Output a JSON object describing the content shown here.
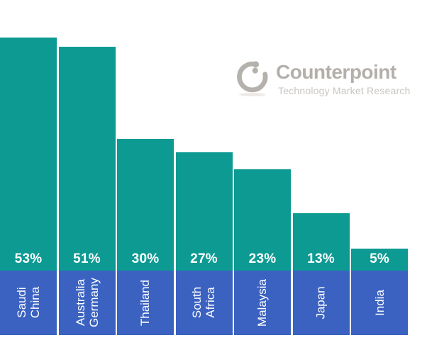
{
  "logo": {
    "name": "Counterpoint",
    "subtitle": "Technology Market Research",
    "icon": "counterpoint-ring-icon",
    "name_color": "#b3afaa",
    "subtitle_color": "#c9c6c1"
  },
  "chart_data": {
    "type": "bar",
    "orientation": "vertical",
    "categories": [
      "Saudi\nChina",
      "Australia\nGermany",
      "Thailand",
      "South\nAfrica",
      "Malaysia",
      "Japan",
      "India"
    ],
    "values": [
      53,
      51,
      30,
      27,
      23,
      13,
      5
    ],
    "value_labels": [
      "53%",
      "51%",
      "30%",
      "27%",
      "23%",
      "13%",
      "5%"
    ],
    "value_suffix": "%",
    "bar_color": "#0d9a93",
    "category_box_color": "#3b62c1",
    "value_label_color": "#ffffff",
    "category_label_color": "#ffffff",
    "title": "",
    "xlabel": "",
    "ylabel": "",
    "ylim": [
      0,
      55
    ],
    "grid": false,
    "legend": false
  }
}
